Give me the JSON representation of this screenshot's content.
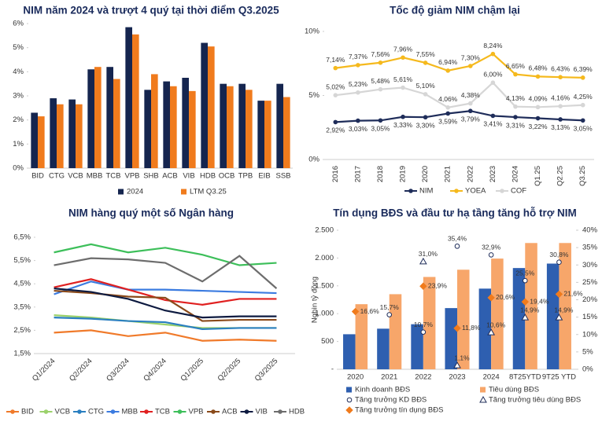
{
  "chart_data": [
    {
      "type": "bar",
      "title": "NIM năm 2024 và trượt 4 quý tại thời điểm Q3.2025",
      "categories": [
        "BID",
        "CTG",
        "VCB",
        "MBB",
        "TCB",
        "VPB",
        "SHB",
        "ACB",
        "VIB",
        "HDB",
        "OCB",
        "TPB",
        "EIB",
        "SSB"
      ],
      "series": [
        {
          "name": "2024",
          "color": "#15254f",
          "values": [
            2.3,
            2.9,
            2.85,
            4.1,
            4.2,
            5.85,
            3.25,
            3.6,
            3.75,
            5.2,
            3.5,
            3.5,
            2.8,
            3.5
          ]
        },
        {
          "name": "LTM Q3.25",
          "color": "#f07b1d",
          "values": [
            2.15,
            2.65,
            2.65,
            4.2,
            3.7,
            5.55,
            3.9,
            3.4,
            3.2,
            5.05,
            3.4,
            3.25,
            2.8,
            2.95
          ]
        }
      ],
      "ylim": [
        0,
        6
      ],
      "yticks": [
        {
          "value": 0,
          "label": "0%"
        },
        {
          "value": 1,
          "label": "1%"
        },
        {
          "value": 2,
          "label": "2%"
        },
        {
          "value": 3,
          "label": "3%"
        },
        {
          "value": 4,
          "label": "4%"
        },
        {
          "value": 5,
          "label": "5%"
        },
        {
          "value": 6,
          "label": "6%"
        }
      ],
      "grid": false
    },
    {
      "type": "line",
      "title": "Tốc độ giảm NIM chậm lại",
      "categories": [
        "2016",
        "2017",
        "2018",
        "2019",
        "2020",
        "2021",
        "2022",
        "2023",
        "2024",
        "Q1.25",
        "Q2.25",
        "Q3.25"
      ],
      "series": [
        {
          "name": "NIM",
          "color": "#1f2d5a",
          "values": [
            2.92,
            3.03,
            3.05,
            3.33,
            3.3,
            3.59,
            3.79,
            3.41,
            3.31,
            3.22,
            3.13,
            3.05
          ],
          "value_labels": [
            "2,92%",
            "3,03%",
            "3,05%",
            "3,33%",
            "3,30%",
            "3,59%",
            "3,79%",
            "3,41%",
            "3,31%",
            "3,22%",
            "3,13%",
            "3,05%"
          ]
        },
        {
          "name": "YOEA",
          "color": "#f5b91d",
          "values": [
            7.14,
            7.37,
            7.56,
            7.96,
            7.55,
            6.94,
            7.3,
            8.24,
            6.65,
            6.48,
            6.43,
            6.39
          ],
          "value_labels": [
            "7,14%",
            "7,37%",
            "7,56%",
            "7,96%",
            "7,55%",
            "6,94%",
            "7,30%",
            "8,24%",
            "6,65%",
            "6,48%",
            "6,43%",
            "6,39%"
          ]
        },
        {
          "name": "COF",
          "color": "#d6d6d6",
          "values": [
            5.02,
            5.23,
            5.48,
            5.61,
            5.1,
            4.06,
            4.38,
            6.0,
            4.13,
            4.09,
            4.16,
            4.25
          ],
          "value_labels": [
            "5,02%",
            "5,23%",
            "5,48%",
            "5,61%",
            "5,10%",
            "4,06%",
            "4,38%",
            "6,00%",
            "4,13%",
            "4,09%",
            "4,16%",
            "4,25%"
          ]
        }
      ],
      "ylim": [
        0,
        10
      ],
      "yticks": [
        {
          "value": 0,
          "label": "0%"
        },
        {
          "value": 5,
          "label": "5%"
        },
        {
          "value": 10,
          "label": "10%"
        }
      ],
      "grid": false
    },
    {
      "type": "line",
      "title": "NIM hàng quý một số Ngân hàng",
      "categories": [
        "Q1/2024",
        "Q2/2024",
        "Q3/2024",
        "Q4/2024",
        "Q1/2025",
        "Q2/2025",
        "Q3/2025"
      ],
      "series": [
        {
          "name": "BID",
          "color": "#f07a2a",
          "values": [
            2.4,
            2.5,
            2.25,
            2.4,
            2.05,
            2.1,
            2.05
          ]
        },
        {
          "name": "VCB",
          "color": "#9bd16b",
          "values": [
            3.15,
            3.05,
            2.9,
            2.75,
            2.6,
            2.6,
            2.6
          ]
        },
        {
          "name": "CTG",
          "color": "#2a7fc0",
          "values": [
            3.05,
            3.0,
            2.9,
            2.85,
            2.55,
            2.6,
            2.6
          ]
        },
        {
          "name": "MBB",
          "color": "#3b7be0",
          "values": [
            4.05,
            4.6,
            4.25,
            4.25,
            4.2,
            4.15,
            4.1
          ]
        },
        {
          "name": "TCB",
          "color": "#e02020",
          "values": [
            4.35,
            4.7,
            4.25,
            3.8,
            3.6,
            3.85,
            3.85
          ]
        },
        {
          "name": "VPB",
          "color": "#3dbf5a",
          "values": [
            5.85,
            6.2,
            5.85,
            6.05,
            5.75,
            5.3,
            5.4
          ]
        },
        {
          "name": "ACB",
          "color": "#8a4a1a",
          "values": [
            4.2,
            4.1,
            3.95,
            3.9,
            2.9,
            2.95,
            2.95
          ]
        },
        {
          "name": "VIB",
          "color": "#0d1a40",
          "values": [
            4.3,
            4.15,
            3.85,
            3.35,
            3.05,
            3.1,
            3.1
          ]
        },
        {
          "name": "HDB",
          "color": "#6d6d6d",
          "values": [
            5.3,
            5.6,
            5.55,
            5.4,
            4.6,
            5.7,
            4.3
          ]
        }
      ],
      "ylim": [
        1.5,
        6.5
      ],
      "yticks": [
        {
          "value": 1.5,
          "label": "1,5%"
        },
        {
          "value": 2.5,
          "label": "2,5%"
        },
        {
          "value": 3.5,
          "label": "3,5%"
        },
        {
          "value": 4.5,
          "label": "4,5%"
        },
        {
          "value": 5.5,
          "label": "5,5%"
        },
        {
          "value": 6.5,
          "label": "6,5%"
        }
      ],
      "grid": false
    },
    {
      "type": "combo",
      "title": "Tín dụng BĐS và đầu tư hạ tầng tăng hỗ trợ NIM",
      "y_label": "Nghìn tỷ đồng",
      "categories": [
        "2020",
        "2021",
        "2022",
        "2023",
        "2024",
        "8T25YTD",
        "9T25 YTD"
      ],
      "series": [
        {
          "name": "Kinh doanh BĐS",
          "kind": "bar",
          "color": "#2e5fb0",
          "values": [
            630,
            730,
            810,
            1100,
            1450,
            1820,
            1900
          ]
        },
        {
          "name": "Tiêu dùng BĐS",
          "kind": "bar",
          "color": "#f7a66a",
          "values": [
            1170,
            1350,
            1660,
            1790,
            1990,
            2270,
            2270
          ]
        },
        {
          "name": "Tăng trưởng KD BĐS",
          "kind": "scatter",
          "marker": "circle",
          "color": "#1f2d5a",
          "axis": "y2",
          "values": [
            null,
            15.7,
            10.7,
            35.4,
            32.9,
            25.5,
            30.8
          ],
          "value_labels": [
            null,
            "15,7%",
            "10,7%",
            "35,4%",
            "32,9%",
            "25,5%",
            "30,8%"
          ]
        },
        {
          "name": "Tăng trưởng tiêu dùng BĐS",
          "kind": "scatter",
          "marker": "triangle",
          "color": "#1f2d5a",
          "axis": "y2",
          "values": [
            null,
            null,
            31.0,
            1.1,
            10.6,
            14.9,
            14.9
          ],
          "value_labels": [
            null,
            null,
            "31,0%",
            "1,1%",
            "10,6%",
            "14,9%",
            "14,9%"
          ]
        },
        {
          "name": "Tăng trưởng tín dụng BĐS",
          "kind": "scatter",
          "marker": "diamond",
          "color": "#f07b1d",
          "axis": "y2",
          "values": [
            16.6,
            null,
            23.9,
            11.8,
            20.6,
            19.4,
            21.6
          ],
          "value_labels": [
            "16,6%",
            null,
            "23,9%",
            "11,8%",
            "20,6%",
            "19,4%",
            "21,6%"
          ]
        }
      ],
      "ylim": [
        0,
        2500
      ],
      "yticks": [
        {
          "value": 0,
          "label": "-"
        },
        500,
        {
          "value": 1000,
          "label": "1.000"
        },
        {
          "value": 1500,
          "label": "1.500"
        },
        {
          "value": 2000,
          "label": "2.000"
        },
        {
          "value": 2500,
          "label": "2.500"
        }
      ],
      "y2lim": [
        0,
        40
      ],
      "y2ticks": [
        {
          "value": 0,
          "label": "0%"
        },
        {
          "value": 5,
          "label": "5%"
        },
        {
          "value": 10,
          "label": "10%"
        },
        {
          "value": 15,
          "label": "15%"
        },
        {
          "value": 20,
          "label": "20%"
        },
        {
          "value": 25,
          "label": "25%"
        },
        {
          "value": 30,
          "label": "30%"
        },
        {
          "value": 35,
          "label": "35%"
        },
        {
          "value": 40,
          "label": "40%"
        }
      ],
      "grid": false
    }
  ]
}
